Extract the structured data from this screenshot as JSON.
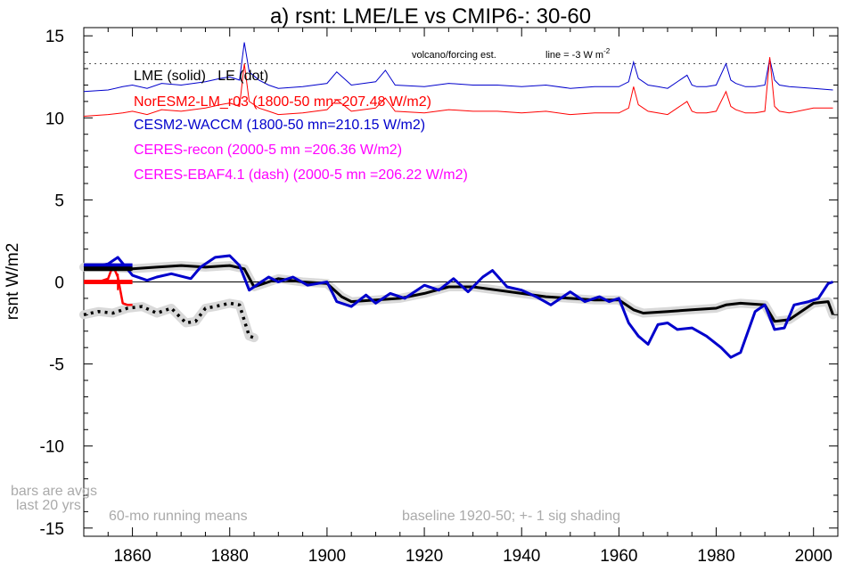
{
  "chart_data": {
    "type": "line",
    "title": "a) rsnt: LME/LE vs CMIP6-: 30-60",
    "ylabel": "rsnt W/m2",
    "xlabel": "",
    "xlim": [
      1850,
      2005
    ],
    "ylim": [
      -15.5,
      15.5
    ],
    "x_ticks": [
      1860,
      1880,
      1900,
      1920,
      1940,
      1960,
      1980,
      2000
    ],
    "y_ticks": [
      15,
      10,
      5,
      0,
      -5,
      -10,
      -15
    ],
    "y_tick_labels": [
      "15",
      "10",
      "5",
      "0",
      "-5",
      "-10",
      "-15"
    ],
    "x_tick_labels": [
      "1860",
      "1880",
      "1900",
      "1920",
      "1940",
      "1960",
      "1980",
      "2000"
    ],
    "grid": false,
    "zero_line": 0,
    "reference_line": {
      "y": 13.3,
      "style": "dotted"
    },
    "annotations": {
      "volcano": "volcano/forcing est.",
      "line_note": "line = -3 W m",
      "line_note_sup": "-2",
      "bars_1": "bars are avgs",
      "bars_2": "last 20 yrs",
      "running": "60-mo running means",
      "baseline": "baseline 1920-50; +- 1 sig shading"
    },
    "legend": [
      {
        "label": "LME (solid)   LE (dot)",
        "color": "#000000"
      },
      {
        "label": "NorESM2-LM_r03 (1800-50 mn=207.48 W/m2)",
        "color": "#ff0000"
      },
      {
        "label": "CESM2-WACCM (1800-50 mn=210.15 W/m2)",
        "color": "#0000cc"
      },
      {
        "label": "CERES-recon (2000-5 mn =206.36 W/m2)",
        "color": "#ff00ff"
      },
      {
        "label": "CERES-EBAF4.1 (dash) (2000-5 mn =206.22 W/m2)",
        "color": "#ff00ff"
      }
    ],
    "colors": {
      "black": "#000000",
      "red": "#ff0000",
      "blue": "#0000cc",
      "gray": "#aaaaaa",
      "shade": "#d9d9d9"
    },
    "series": [
      {
        "name": "LME (solid)",
        "color": "#000000",
        "style": "solid",
        "x": [
          1850,
          1855,
          1860,
          1865,
          1870,
          1875,
          1880,
          1883,
          1885,
          1888,
          1890,
          1895,
          1900,
          1903,
          1905,
          1910,
          1915,
          1920,
          1925,
          1930,
          1935,
          1940,
          1945,
          1950,
          1955,
          1960,
          1963,
          1965,
          1970,
          1975,
          1980,
          1982,
          1985,
          1990,
          1992,
          1995,
          2000,
          2003,
          2004
        ],
        "y": [
          0.9,
          0.9,
          0.8,
          0.9,
          1.0,
          0.9,
          1.0,
          0.8,
          -0.3,
          0.0,
          0.2,
          0.0,
          -0.1,
          -0.9,
          -1.2,
          -1.1,
          -1.0,
          -0.7,
          -0.3,
          -0.3,
          -0.5,
          -0.7,
          -0.9,
          -1.0,
          -1.1,
          -1.1,
          -1.7,
          -1.9,
          -1.8,
          -1.7,
          -1.6,
          -1.4,
          -1.3,
          -1.4,
          -2.4,
          -2.3,
          -1.3,
          -1.2,
          -2.0
        ]
      },
      {
        "name": "LE (dot)",
        "color": "#000000",
        "style": "dotted",
        "x": [
          1850,
          1853,
          1856,
          1859,
          1862,
          1865,
          1868,
          1871,
          1873,
          1875,
          1877,
          1880,
          1882,
          1884,
          1885
        ],
        "y": [
          -2.0,
          -1.8,
          -1.9,
          -1.6,
          -1.5,
          -1.9,
          -1.6,
          -2.5,
          -2.4,
          -1.6,
          -1.5,
          -1.3,
          -1.4,
          -3.3,
          -3.4
        ]
      },
      {
        "name": "CESM2-WACCM",
        "color": "#0000cc",
        "style": "solid",
        "x": [
          1850,
          1852,
          1855,
          1857,
          1860,
          1863,
          1865,
          1868,
          1872,
          1874,
          1877,
          1880,
          1882,
          1884,
          1886,
          1888,
          1890,
          1893,
          1896,
          1900,
          1902,
          1905,
          1908,
          1910,
          1913,
          1916,
          1920,
          1923,
          1926,
          1929,
          1932,
          1934,
          1937,
          1940,
          1943,
          1946,
          1950,
          1953,
          1956,
          1958,
          1960,
          1962,
          1964,
          1966,
          1968,
          1970,
          1972,
          1975,
          1978,
          1981,
          1983,
          1985,
          1988,
          1990,
          1992,
          1994,
          1996,
          1999,
          2001,
          2003,
          2004
        ],
        "y": [
          1.0,
          0.9,
          1.1,
          1.5,
          0.4,
          0.1,
          0.3,
          0.5,
          0.2,
          0.9,
          1.5,
          1.6,
          1.0,
          -0.5,
          -0.1,
          0.3,
          0.0,
          0.3,
          -0.2,
          0.0,
          -1.2,
          -1.5,
          -0.8,
          -1.3,
          -0.7,
          -1.0,
          -0.2,
          -0.5,
          0.2,
          -0.6,
          0.3,
          0.7,
          -0.3,
          -0.5,
          -0.9,
          -1.4,
          -0.6,
          -1.2,
          -0.9,
          -1.2,
          -1.0,
          -2.5,
          -3.3,
          -3.8,
          -2.6,
          -2.5,
          -2.9,
          -2.8,
          -3.3,
          -4.0,
          -4.6,
          -4.3,
          -1.8,
          -1.4,
          -2.9,
          -2.8,
          -1.4,
          -1.2,
          -1.0,
          -0.1,
          0.0
        ]
      },
      {
        "name": "NorESM2-LM_r03",
        "color": "#ff0000",
        "style": "solid",
        "x": [
          1850,
          1853,
          1855,
          1856,
          1857,
          1858,
          1859,
          1860
        ],
        "y": [
          0.0,
          0.0,
          0.2,
          1.0,
          0.3,
          -1.3,
          -1.4,
          -1.4
        ]
      }
    ],
    "volcano_forcing": {
      "blue": {
        "color": "#0000cc",
        "x": [
          1850,
          1855,
          1858,
          1860,
          1863,
          1866,
          1870,
          1875,
          1878,
          1880,
          1882,
          1883,
          1884,
          1886,
          1888,
          1890,
          1895,
          1900,
          1902,
          1905,
          1910,
          1912,
          1914,
          1920,
          1925,
          1930,
          1935,
          1940,
          1945,
          1950,
          1955,
          1960,
          1962,
          1963,
          1964,
          1966,
          1968,
          1970,
          1974,
          1975,
          1976,
          1978,
          1980,
          1982,
          1983,
          1984,
          1986,
          1988,
          1990,
          1991,
          1992,
          1993,
          1995,
          2000,
          2004
        ],
        "y": [
          11.6,
          11.7,
          11.9,
          12.0,
          11.8,
          12.1,
          12.0,
          12.2,
          12.4,
          12.5,
          12.3,
          14.6,
          12.8,
          12.3,
          12.0,
          11.8,
          11.9,
          12.1,
          12.8,
          12.0,
          12.2,
          12.9,
          12.0,
          11.9,
          12.1,
          12.0,
          12.0,
          11.9,
          12.0,
          11.8,
          11.9,
          11.9,
          12.2,
          13.4,
          12.4,
          12.0,
          11.9,
          11.8,
          12.6,
          12.0,
          11.9,
          11.9,
          12.0,
          13.3,
          12.3,
          12.1,
          11.9,
          11.9,
          12.0,
          13.6,
          12.3,
          12.0,
          11.9,
          11.8,
          11.7
        ]
      },
      "red": {
        "color": "#ff0000",
        "x": [
          1850,
          1855,
          1858,
          1860,
          1863,
          1866,
          1870,
          1875,
          1878,
          1880,
          1882,
          1883,
          1884,
          1886,
          1888,
          1890,
          1895,
          1900,
          1902,
          1905,
          1910,
          1912,
          1914,
          1920,
          1925,
          1930,
          1935,
          1940,
          1945,
          1950,
          1955,
          1960,
          1962,
          1963,
          1964,
          1966,
          1968,
          1970,
          1974,
          1975,
          1976,
          1978,
          1980,
          1982,
          1983,
          1984,
          1986,
          1988,
          1990,
          1991,
          1992,
          1993,
          1995,
          2000,
          2004
        ],
        "y": [
          10.1,
          10.2,
          10.3,
          10.4,
          10.2,
          10.5,
          10.4,
          10.6,
          10.8,
          10.9,
          10.7,
          13.3,
          11.0,
          10.6,
          10.4,
          10.2,
          10.3,
          10.5,
          11.1,
          10.4,
          10.6,
          11.2,
          10.4,
          10.3,
          10.5,
          10.4,
          10.4,
          10.3,
          10.4,
          10.2,
          10.3,
          10.3,
          10.6,
          11.9,
          10.8,
          10.4,
          10.3,
          10.2,
          11.0,
          10.4,
          10.3,
          10.3,
          10.4,
          11.6,
          10.7,
          10.5,
          10.3,
          10.3,
          10.4,
          13.7,
          10.7,
          10.4,
          10.3,
          10.6,
          10.6
        ]
      }
    },
    "bars": [
      {
        "color": "#0000cc",
        "x0": 1850,
        "x1": 1860,
        "y": 1.0,
        "err_x": 1855,
        "err": 0.15
      },
      {
        "color": "#000000",
        "x0": 1850,
        "x1": 1860,
        "y": 0.8,
        "err_x": 1855,
        "err": 0.1
      },
      {
        "color": "#ff0000",
        "x0": 1850,
        "x1": 1860,
        "y": 0.0,
        "err_x": 1857,
        "err": 0.5
      }
    ]
  }
}
